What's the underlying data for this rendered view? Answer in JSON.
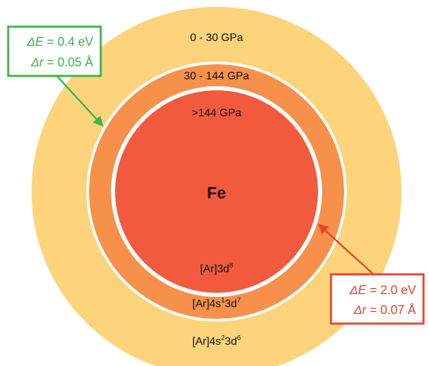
{
  "element": "Fe",
  "layers": [
    {
      "pressure": "0 - 30 GPa",
      "config_base": "[Ar]4s",
      "config_sup1": "2",
      "config_mid": "3d",
      "config_sup2": "6",
      "color": "#FDD47C"
    },
    {
      "pressure": "30 - 144 GPa",
      "config_base": "[Ar]4s",
      "config_sup1": "1",
      "config_mid": "3d",
      "config_sup2": "7",
      "color": "#F7904A"
    },
    {
      "pressure": ">144 GPa",
      "config_base": "[Ar]3d",
      "config_sup1": "8",
      "config_mid": "",
      "config_sup2": "",
      "color": "#F25A3E"
    }
  ],
  "annotations": [
    {
      "dE_symbol": "ΔE",
      "dE_value": " = 0.4 eV",
      "dr_symbol": "Δr",
      "dr_value": " = 0.05 Å",
      "color": "#3AB54A"
    },
    {
      "dE_symbol": "ΔE",
      "dE_value": " = 2.0 eV",
      "dr_symbol": "Δr",
      "dr_value": " = 0.07 Å",
      "color": "#E8432D"
    }
  ]
}
